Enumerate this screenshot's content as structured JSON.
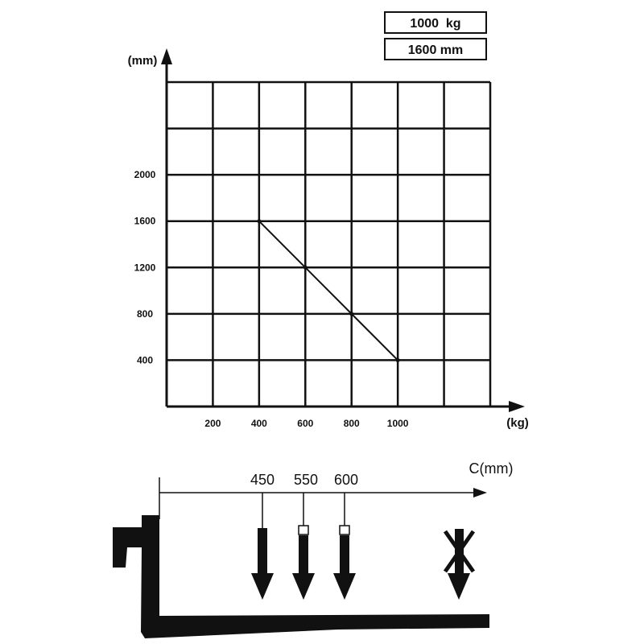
{
  "chart_data": {
    "type": "line",
    "rated_capacity": "1000  kg",
    "lift_height": "1600 mm",
    "ylabel": "(mm)",
    "xlabel": "(kg)",
    "x_ticks": [
      "200",
      "400",
      "600",
      "800",
      "1000"
    ],
    "y_ticks": [
      "400",
      "800",
      "1200",
      "1600",
      "2000"
    ],
    "xlim": [
      0,
      1400
    ],
    "ylim": [
      0,
      2800
    ],
    "grid": true,
    "series": [
      {
        "x": [
          400,
          600,
          800,
          1000
        ],
        "y": [
          1600,
          1200,
          800,
          400
        ]
      }
    ]
  },
  "load_center": {
    "axis_label": "C(mm)",
    "positions": [
      "450",
      "550",
      "600"
    ],
    "color": "#000000"
  }
}
